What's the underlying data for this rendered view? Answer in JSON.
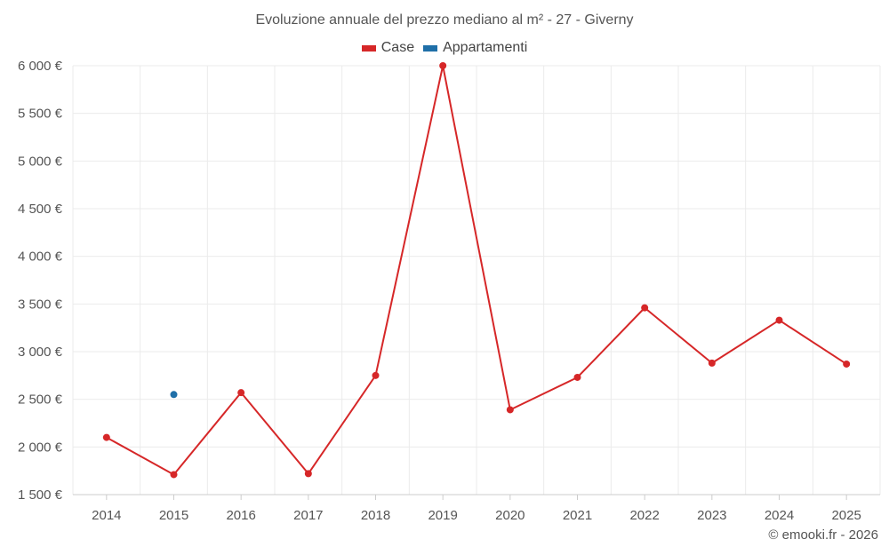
{
  "chart_data": {
    "type": "line",
    "title": "Evoluzione annuale del prezzo mediano al m² - 27 - Giverny",
    "categories": [
      "2014",
      "2015",
      "2016",
      "2017",
      "2018",
      "2019",
      "2020",
      "2021",
      "2022",
      "2023",
      "2024",
      "2025"
    ],
    "series": [
      {
        "name": "Case",
        "color": "#d62728",
        "values": [
          2100,
          1710,
          2570,
          1720,
          2750,
          6000,
          2390,
          2730,
          3460,
          2880,
          3330,
          2870
        ]
      },
      {
        "name": "Appartamenti",
        "color": "#1f6fa8",
        "values": [
          null,
          2550,
          null,
          null,
          null,
          null,
          null,
          null,
          null,
          null,
          null,
          null
        ]
      }
    ],
    "ylim": [
      1500,
      6000
    ],
    "yticks": [
      1500,
      2000,
      2500,
      3000,
      3500,
      4000,
      4500,
      5000,
      5500,
      6000
    ],
    "ytick_labels": [
      "1 500 €",
      "2 000 €",
      "2 500 €",
      "3 000 €",
      "3 500 €",
      "4 000 €",
      "4 500 €",
      "5 000 €",
      "5 500 €",
      "6 000 €"
    ],
    "xlabel": "",
    "ylabel": "",
    "legend_position": "top-center",
    "grid": true
  },
  "credit": "© emooki.fr - 2026"
}
